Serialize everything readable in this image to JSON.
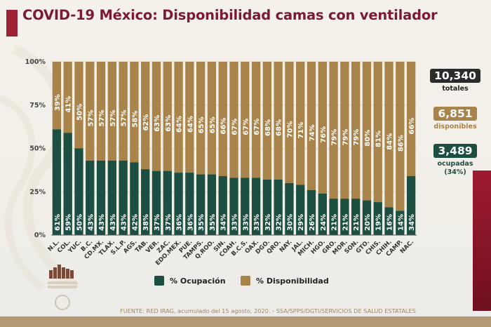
{
  "header": {
    "title": "COVID-19 México: Disponibilidad camas con ventilador"
  },
  "colors": {
    "ocupacion": "#1c4e41",
    "disponibilidad": "#a8834a",
    "accent": "#9e2236",
    "title": "#7a1b33",
    "total_box": "#2b2b2b"
  },
  "summary": {
    "total": {
      "value": "10,340",
      "label": "totales"
    },
    "disponibles": {
      "value": "6,851",
      "label": "disponibles"
    },
    "ocupadas": {
      "value": "3,489",
      "label": "ocupadas",
      "pct": "(34%)"
    }
  },
  "legend": {
    "ocupacion": "% Ocupación",
    "disponibilidad": "% Disponibilidad"
  },
  "footer": {
    "source": "FUENTE: RED IRAG, acumulado del 15 agosto, 2020. -  SSA/SPPS/DGTI/SERVICIOS DE SALUD ESTATALES"
  },
  "chart_data": {
    "type": "bar",
    "stacked": true,
    "title": "COVID-19 México: Disponibilidad camas con ventilador",
    "xlabel": "",
    "ylabel": "",
    "ylim": [
      0,
      100
    ],
    "yticks": [
      "0%",
      "25%",
      "50%",
      "75%",
      "100%"
    ],
    "grid": true,
    "legend_position": "bottom",
    "categories": [
      "N.L.",
      "COL.",
      "YUC.",
      "B.C.",
      "CD.MX.",
      "TLAX.",
      "S.L.P.",
      "AGS.",
      "TAB.",
      "VER.",
      "ZAC.",
      "EDO.MEX.",
      "PUE.",
      "TAMPS.",
      "Q.ROO.",
      "SIN.",
      "COAH.",
      "B.C.S.",
      "OAX.",
      "DGO.",
      "QRO.",
      "NAY.",
      "JAL.",
      "MICH.",
      "HGO.",
      "GRO.",
      "MOR.",
      "SON.",
      "GTO.",
      "CHIS.",
      "CHIH.",
      "CAMP.",
      "NAC."
    ],
    "series": [
      {
        "name": "% Ocupación",
        "values": [
          61,
          59,
          50,
          43,
          43,
          43,
          43,
          42,
          38,
          37,
          37,
          36,
          36,
          35,
          35,
          34,
          33,
          33,
          33,
          32,
          32,
          30,
          29,
          26,
          24,
          21,
          21,
          21,
          20,
          19,
          16,
          14,
          34
        ]
      },
      {
        "name": "% Disponibilidad",
        "values": [
          39,
          41,
          50,
          57,
          57,
          57,
          57,
          58,
          62,
          63,
          63,
          64,
          64,
          65,
          65,
          66,
          67,
          67,
          67,
          68,
          68,
          70,
          71,
          74,
          76,
          79,
          79,
          79,
          80,
          81,
          84,
          86,
          66
        ]
      }
    ]
  }
}
